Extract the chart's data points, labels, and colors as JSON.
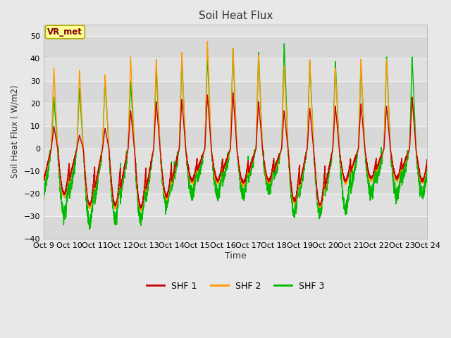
{
  "title": "Soil Heat Flux",
  "ylabel": "Soil Heat Flux ( W/m2)",
  "xlabel": "Time",
  "xlim_start": 0,
  "xlim_end": 15,
  "ylim": [
    -40,
    55
  ],
  "yticks": [
    -40,
    -30,
    -20,
    -10,
    0,
    10,
    20,
    30,
    40,
    50
  ],
  "xtick_labels": [
    "Oct 9",
    "Oct 10",
    "Oct 11",
    "Oct 12",
    "Oct 13",
    "Oct 14",
    "Oct 15",
    "Oct 16",
    "Oct 17",
    "Oct 18",
    "Oct 19",
    "Oct 20",
    "Oct 21",
    "Oct 22",
    "Oct 23",
    "Oct 24"
  ],
  "colors": {
    "SHF1": "#cc0000",
    "SHF2": "#ff9900",
    "SHF3": "#00bb00"
  },
  "line_width": 1.0,
  "bg_color": "#e8e8e8",
  "plot_bg": "#e0e0e0",
  "grid_color": "#f5f5f5",
  "legend_label": "VR_met",
  "legend_box_color": "#ffff99",
  "legend_text_color": "#800000",
  "series_labels": [
    "SHF 1",
    "SHF 2",
    "SHF 3"
  ],
  "day_amp_shf1": [
    10,
    6,
    9,
    17,
    21,
    22,
    24,
    25,
    21,
    17,
    18,
    19,
    20,
    19,
    23
  ],
  "day_amp_shf2": [
    36,
    35,
    33,
    41,
    40,
    43,
    48,
    45,
    42,
    37,
    40,
    36,
    40,
    40,
    23
  ],
  "day_amp_shf3": [
    23,
    27,
    31,
    30,
    36,
    40,
    42,
    45,
    43,
    47,
    39,
    39,
    37,
    41,
    41
  ],
  "day_trough_shf1": [
    -20,
    -25,
    -25,
    -26,
    -21,
    -14,
    -14,
    -15,
    -14,
    -23,
    -25,
    -14,
    -13,
    -13,
    -14
  ],
  "day_trough_shf2": [
    -21,
    -26,
    -26,
    -27,
    -22,
    -15,
    -15,
    -16,
    -15,
    -24,
    -26,
    -15,
    -14,
    -14,
    -15
  ],
  "day_trough_shf3": [
    -30,
    -33,
    -31,
    -31,
    -25,
    -20,
    -20,
    -20,
    -18,
    -29,
    -28,
    -27,
    -20,
    -21,
    -20
  ],
  "n_days": 15,
  "pts_per_day": 288
}
